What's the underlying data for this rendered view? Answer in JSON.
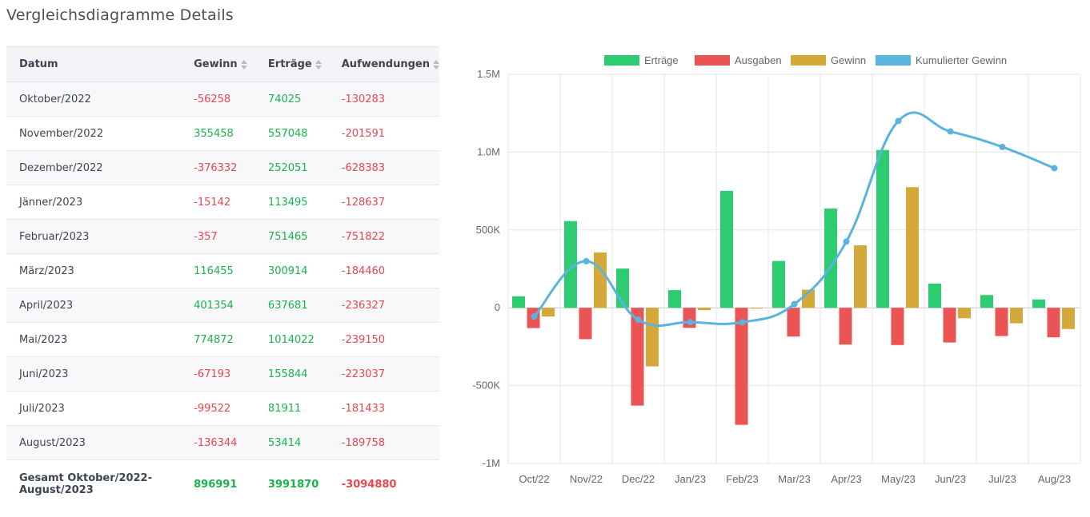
{
  "page_title": "Vergleichsdiagramme Details",
  "table": {
    "headers": [
      "Datum",
      "Gewinn",
      "Erträge",
      "Aufwendungen"
    ],
    "rows": [
      {
        "date": "Oktober/2022",
        "gewinn": "-56258",
        "ertraege": "74025",
        "aufwendungen": "-130283"
      },
      {
        "date": "November/2022",
        "gewinn": "355458",
        "ertraege": "557048",
        "aufwendungen": "-201591"
      },
      {
        "date": "Dezember/2022",
        "gewinn": "-376332",
        "ertraege": "252051",
        "aufwendungen": "-628383"
      },
      {
        "date": "Jänner/2023",
        "gewinn": "-15142",
        "ertraege": "113495",
        "aufwendungen": "-128637"
      },
      {
        "date": "Februar/2023",
        "gewinn": "-357",
        "ertraege": "751465",
        "aufwendungen": "-751822"
      },
      {
        "date": "März/2023",
        "gewinn": "116455",
        "ertraege": "300914",
        "aufwendungen": "-184460"
      },
      {
        "date": "April/2023",
        "gewinn": "401354",
        "ertraege": "637681",
        "aufwendungen": "-236327"
      },
      {
        "date": "Mai/2023",
        "gewinn": "774872",
        "ertraege": "1014022",
        "aufwendungen": "-239150"
      },
      {
        "date": "Juni/2023",
        "gewinn": "-67193",
        "ertraege": "155844",
        "aufwendungen": "-223037"
      },
      {
        "date": "Juli/2023",
        "gewinn": "-99522",
        "ertraege": "81911",
        "aufwendungen": "-181433"
      },
      {
        "date": "August/2023",
        "gewinn": "-136344",
        "ertraege": "53414",
        "aufwendungen": "-189758"
      }
    ],
    "total": {
      "label": "Gesamt Oktober/2022-August/2023",
      "gewinn": "896991",
      "ertraege": "3991870",
      "aufwendungen": "-3094880"
    }
  },
  "colors": {
    "positive": "#19b24b",
    "negative": "#e8474d"
  },
  "chart_data": {
    "type": "bar",
    "categories": [
      "Oct/22",
      "Nov/22",
      "Dec/22",
      "Jan/23",
      "Feb/23",
      "Mar/23",
      "Apr/23",
      "May/23",
      "Jun/23",
      "Jul/23",
      "Aug/23"
    ],
    "series": [
      {
        "name": "Erträge",
        "type": "bar",
        "color": "#2ecc71",
        "values": [
          74025,
          557048,
          252051,
          113495,
          751465,
          300914,
          637681,
          1014022,
          155844,
          81911,
          53414
        ]
      },
      {
        "name": "Ausgaben",
        "type": "bar",
        "color": "#ea5455",
        "values": [
          -130283,
          -201591,
          -628383,
          -128637,
          -751822,
          -184460,
          -236327,
          -239150,
          -223037,
          -181433,
          -189758
        ]
      },
      {
        "name": "Gewinn",
        "type": "bar",
        "color": "#d4a93a",
        "values": [
          -56258,
          355458,
          -376332,
          -15142,
          -357,
          116455,
          401354,
          774872,
          -67193,
          -99522,
          -136344
        ]
      },
      {
        "name": "Kumulierter Gewinn",
        "type": "line",
        "color": "#5ab4de",
        "values": [
          -56258,
          299200,
          -77132,
          -92274,
          -92631,
          23824,
          425178,
          1200050,
          1132857,
          1033335,
          896991
        ]
      }
    ],
    "ylim": [
      -1000000,
      1500000
    ],
    "yticks": [
      {
        "value": 1500000,
        "label": "1.5M"
      },
      {
        "value": 1000000,
        "label": "1.0M"
      },
      {
        "value": 500000,
        "label": "500K"
      },
      {
        "value": 0,
        "label": "0"
      },
      {
        "value": -500000,
        "label": "-500K"
      },
      {
        "value": -1000000,
        "label": "-1M"
      }
    ],
    "grid": true,
    "legend_position": "top"
  }
}
